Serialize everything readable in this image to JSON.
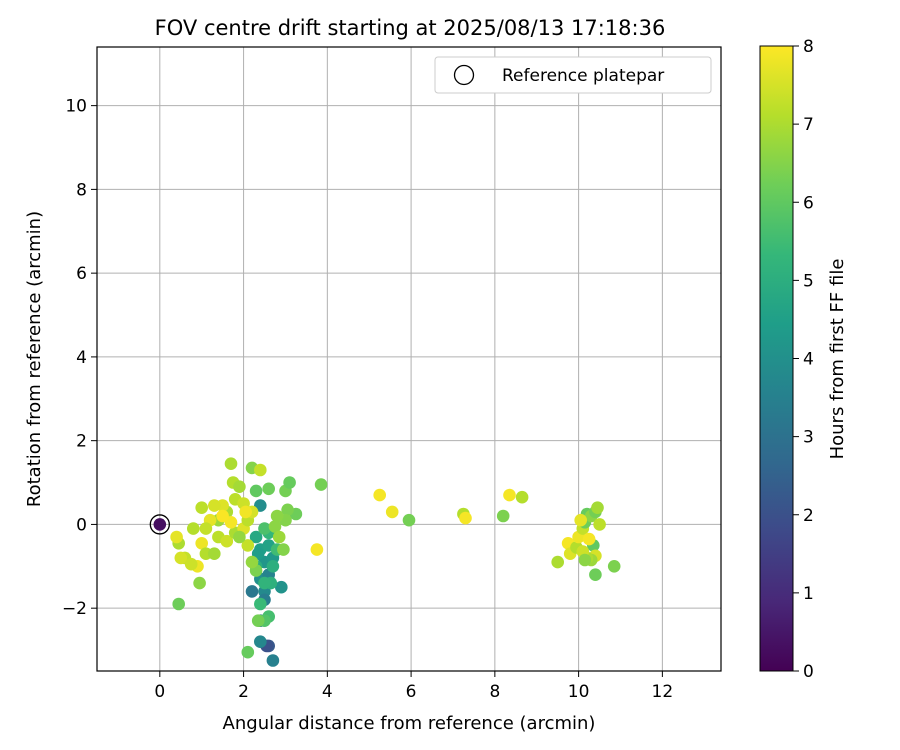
{
  "chart_data": {
    "type": "scatter",
    "title": "FOV centre drift starting at 2025/08/13 17:18:36",
    "xlabel": "Angular distance from reference (arcmin)",
    "ylabel": "Rotation from reference (arcmin)",
    "xlim": [
      -1.5,
      13.4
    ],
    "ylim": [
      -3.5,
      11.4
    ],
    "xticks": [
      "0",
      "2",
      "4",
      "6",
      "8",
      "10",
      "12"
    ],
    "yticks": [
      "−2",
      "0",
      "2",
      "4",
      "6",
      "8",
      "10"
    ],
    "xtick_values": [
      0,
      2,
      4,
      6,
      8,
      10,
      12
    ],
    "ytick_values": [
      -2,
      0,
      2,
      4,
      6,
      8,
      10
    ],
    "grid": true,
    "legend": {
      "position": "top-right",
      "entries": [
        "Reference platepar"
      ]
    },
    "colorbar": {
      "label": "Hours from first FF file",
      "min": 0,
      "max": 8,
      "ticks": [
        "0",
        "1",
        "2",
        "3",
        "4",
        "5",
        "6",
        "7",
        "8"
      ],
      "tick_values": [
        0,
        1,
        2,
        3,
        4,
        5,
        6,
        7,
        8
      ],
      "colormap": [
        "#440154",
        "#482878",
        "#3e4989",
        "#31688e",
        "#26828e",
        "#1f9e89",
        "#35b779",
        "#6ece58",
        "#b5de2b",
        "#fde725"
      ]
    },
    "reference_point": {
      "x": 0,
      "y": 0,
      "c": 0.3
    },
    "points": [
      {
        "x": 2.3,
        "y": -0.3,
        "c": 4.8
      },
      {
        "x": 2.4,
        "y": -0.6,
        "c": 4.5
      },
      {
        "x": 2.5,
        "y": -0.9,
        "c": 4.2
      },
      {
        "x": 2.4,
        "y": -1.3,
        "c": 4.0
      },
      {
        "x": 2.5,
        "y": -1.6,
        "c": 3.8
      },
      {
        "x": 2.6,
        "y": -1.2,
        "c": 3.6
      },
      {
        "x": 2.5,
        "y": -1.8,
        "c": 3.4
      },
      {
        "x": 2.2,
        "y": -1.6,
        "c": 3.2
      },
      {
        "x": 2.4,
        "y": -2.3,
        "c": 3.0
      },
      {
        "x": 2.6,
        "y": -2.9,
        "c": 2.2
      },
      {
        "x": 2.55,
        "y": -2.9,
        "c": 2.0
      },
      {
        "x": 2.7,
        "y": -3.25,
        "c": 3.5
      },
      {
        "x": 2.4,
        "y": -2.8,
        "c": 3.7
      },
      {
        "x": 2.35,
        "y": -0.7,
        "c": 4.4
      },
      {
        "x": 2.6,
        "y": -0.5,
        "c": 4.6
      },
      {
        "x": 2.7,
        "y": -0.8,
        "c": 4.3
      },
      {
        "x": 2.4,
        "y": 0.45,
        "c": 3.9
      },
      {
        "x": 2.3,
        "y": -1.0,
        "c": 4.9
      },
      {
        "x": 2.9,
        "y": -1.5,
        "c": 4.1
      },
      {
        "x": 2.65,
        "y": -1.4,
        "c": 5.1
      },
      {
        "x": 2.6,
        "y": -0.2,
        "c": 5.3
      },
      {
        "x": 2.8,
        "y": -0.6,
        "c": 5.5
      },
      {
        "x": 2.6,
        "y": -2.2,
        "c": 5.6
      },
      {
        "x": 2.5,
        "y": -2.3,
        "c": 5.8
      },
      {
        "x": 2.4,
        "y": -1.9,
        "c": 5.4
      },
      {
        "x": 2.5,
        "y": -1.4,
        "c": 5.2
      },
      {
        "x": 2.7,
        "y": -1.0,
        "c": 5.0
      },
      {
        "x": 2.5,
        "y": -0.1,
        "c": 5.7
      },
      {
        "x": 2.1,
        "y": -3.05,
        "c": 6.1
      },
      {
        "x": 0.45,
        "y": -1.9,
        "c": 6.2
      },
      {
        "x": 0.95,
        "y": -1.4,
        "c": 6.6
      },
      {
        "x": 2.35,
        "y": -2.3,
        "c": 6.3
      },
      {
        "x": 2.3,
        "y": -1.1,
        "c": 6.4
      },
      {
        "x": 2.6,
        "y": 0.85,
        "c": 6.2
      },
      {
        "x": 2.3,
        "y": 0.8,
        "c": 6.0
      },
      {
        "x": 3.0,
        "y": 0.8,
        "c": 6.3
      },
      {
        "x": 3.1,
        "y": 1.0,
        "c": 6.1
      },
      {
        "x": 3.25,
        "y": 0.25,
        "c": 6.2
      },
      {
        "x": 3.05,
        "y": 0.35,
        "c": 6.4
      },
      {
        "x": 3.0,
        "y": 0.1,
        "c": 6.5
      },
      {
        "x": 2.8,
        "y": 0.2,
        "c": 6.6
      },
      {
        "x": 2.2,
        "y": 1.35,
        "c": 6.5
      },
      {
        "x": 1.7,
        "y": 1.45,
        "c": 7.0
      },
      {
        "x": 2.4,
        "y": 1.3,
        "c": 7.3
      },
      {
        "x": 1.75,
        "y": 1.0,
        "c": 7.1
      },
      {
        "x": 1.9,
        "y": 0.9,
        "c": 6.9
      },
      {
        "x": 1.8,
        "y": 0.6,
        "c": 7.2
      },
      {
        "x": 2.0,
        "y": 0.5,
        "c": 7.4
      },
      {
        "x": 1.6,
        "y": 0.3,
        "c": 7.0
      },
      {
        "x": 1.5,
        "y": 0.45,
        "c": 7.6
      },
      {
        "x": 1.3,
        "y": 0.45,
        "c": 7.5
      },
      {
        "x": 1.4,
        "y": 0.1,
        "c": 6.8
      },
      {
        "x": 1.2,
        "y": 0.1,
        "c": 7.7
      },
      {
        "x": 1.1,
        "y": -0.1,
        "c": 7.3
      },
      {
        "x": 1.0,
        "y": -0.45,
        "c": 7.8
      },
      {
        "x": 1.1,
        "y": -0.7,
        "c": 7.1
      },
      {
        "x": 1.3,
        "y": -0.7,
        "c": 6.9
      },
      {
        "x": 1.4,
        "y": -0.3,
        "c": 7.2
      },
      {
        "x": 1.6,
        "y": -0.4,
        "c": 7.4
      },
      {
        "x": 1.8,
        "y": -0.2,
        "c": 7.0
      },
      {
        "x": 2.0,
        "y": -0.1,
        "c": 7.6
      },
      {
        "x": 2.1,
        "y": 0.1,
        "c": 7.2
      },
      {
        "x": 2.2,
        "y": 0.3,
        "c": 7.5
      },
      {
        "x": 2.1,
        "y": -0.5,
        "c": 7.3
      },
      {
        "x": 1.9,
        "y": -0.3,
        "c": 6.7
      },
      {
        "x": 1.7,
        "y": 0.05,
        "c": 7.9
      },
      {
        "x": 2.05,
        "y": 0.3,
        "c": 7.85
      },
      {
        "x": 1.5,
        "y": 0.2,
        "c": 7.95
      },
      {
        "x": 0.8,
        "y": -0.1,
        "c": 7.1
      },
      {
        "x": 0.6,
        "y": -0.8,
        "c": 7.3
      },
      {
        "x": 0.5,
        "y": -0.8,
        "c": 7.5
      },
      {
        "x": 0.45,
        "y": -0.45,
        "c": 7.0
      },
      {
        "x": 0.4,
        "y": -0.3,
        "c": 7.7
      },
      {
        "x": 0.9,
        "y": -1.0,
        "c": 7.8
      },
      {
        "x": 0.75,
        "y": -0.95,
        "c": 7.4
      },
      {
        "x": 1.0,
        "y": 0.4,
        "c": 7.2
      },
      {
        "x": 2.75,
        "y": -0.05,
        "c": 6.6
      },
      {
        "x": 2.85,
        "y": -0.3,
        "c": 6.8
      },
      {
        "x": 2.95,
        "y": -0.6,
        "c": 6.5
      },
      {
        "x": 2.2,
        "y": -0.9,
        "c": 6.7
      },
      {
        "x": 3.85,
        "y": 0.95,
        "c": 6.3
      },
      {
        "x": 3.75,
        "y": -0.6,
        "c": 7.9
      },
      {
        "x": 5.25,
        "y": 0.7,
        "c": 7.9
      },
      {
        "x": 5.55,
        "y": 0.3,
        "c": 7.8
      },
      {
        "x": 5.95,
        "y": 0.1,
        "c": 6.3
      },
      {
        "x": 7.25,
        "y": 0.25,
        "c": 7.1
      },
      {
        "x": 7.3,
        "y": 0.15,
        "c": 7.9
      },
      {
        "x": 8.2,
        "y": 0.2,
        "c": 6.4
      },
      {
        "x": 8.35,
        "y": 0.7,
        "c": 7.9
      },
      {
        "x": 8.65,
        "y": 0.65,
        "c": 7.1
      },
      {
        "x": 9.5,
        "y": -0.9,
        "c": 7.0
      },
      {
        "x": 9.75,
        "y": -0.45,
        "c": 7.9
      },
      {
        "x": 9.8,
        "y": -0.7,
        "c": 7.6
      },
      {
        "x": 9.95,
        "y": -0.55,
        "c": 7.1
      },
      {
        "x": 10.0,
        "y": -0.3,
        "c": 7.8
      },
      {
        "x": 10.1,
        "y": -0.1,
        "c": 7.3
      },
      {
        "x": 10.15,
        "y": 0.05,
        "c": 6.2
      },
      {
        "x": 10.2,
        "y": 0.25,
        "c": 6.1
      },
      {
        "x": 10.3,
        "y": 0.2,
        "c": 6.6
      },
      {
        "x": 10.4,
        "y": 0.3,
        "c": 6.3
      },
      {
        "x": 10.45,
        "y": 0.4,
        "c": 6.9
      },
      {
        "x": 10.5,
        "y": 0.0,
        "c": 7.2
      },
      {
        "x": 10.35,
        "y": -0.5,
        "c": 6.0
      },
      {
        "x": 10.4,
        "y": -0.75,
        "c": 7.5
      },
      {
        "x": 10.3,
        "y": -0.85,
        "c": 6.8
      },
      {
        "x": 10.2,
        "y": -0.8,
        "c": 7.0
      },
      {
        "x": 10.1,
        "y": -0.65,
        "c": 7.4
      },
      {
        "x": 10.25,
        "y": -0.35,
        "c": 7.9
      },
      {
        "x": 10.4,
        "y": -1.2,
        "c": 6.2
      },
      {
        "x": 10.85,
        "y": -1.0,
        "c": 6.4
      },
      {
        "x": 10.15,
        "y": -0.85,
        "c": 6.6
      },
      {
        "x": 10.05,
        "y": 0.1,
        "c": 7.7
      }
    ]
  }
}
